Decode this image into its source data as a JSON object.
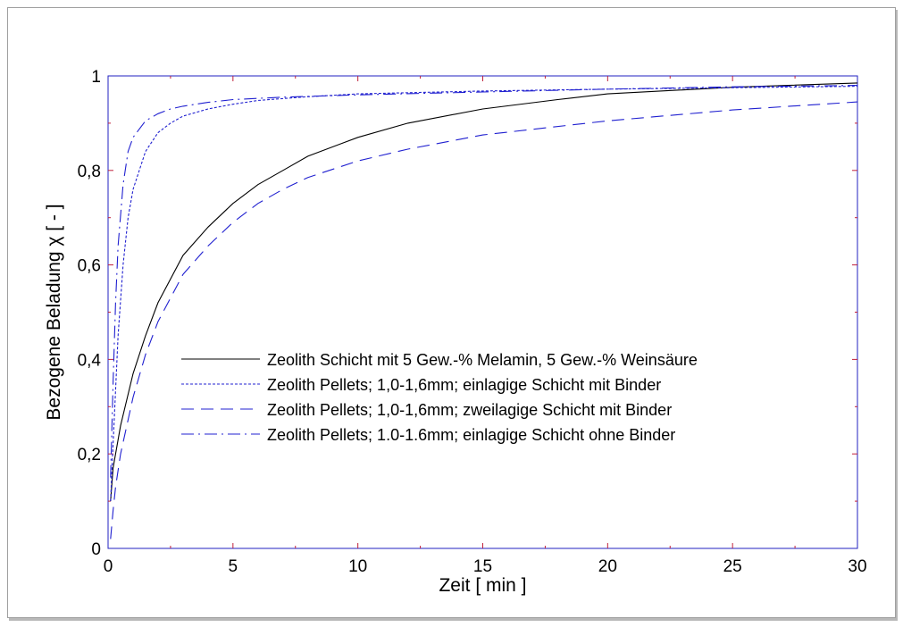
{
  "colors": {
    "axis": "#2020c0",
    "tick": "#c0203a",
    "curve_black": "#000000",
    "curve_blue": "#2020d0"
  },
  "chart_data": {
    "type": "line",
    "xlabel": "Zeit [ min ]",
    "ylabel": "Bezogene Beladung χ [ - ]",
    "xlim": [
      0,
      30
    ],
    "ylim": [
      0,
      1
    ],
    "x_ticks": [
      0,
      5,
      10,
      15,
      20,
      25,
      30
    ],
    "x_tick_labels": [
      "0",
      "5",
      "10",
      "15",
      "20",
      "25",
      "30"
    ],
    "y_ticks": [
      0,
      0.2,
      0.4,
      0.6,
      0.8,
      1
    ],
    "y_tick_labels": [
      "0",
      "0,2",
      "0,4",
      "0,6",
      "0,8",
      "1"
    ],
    "grid": false,
    "legend_position": "center-right",
    "series": [
      {
        "name": "Zeolith Schicht mit 5 Gew.-% Melamin, 5 Gew.-% Weinsäure",
        "style": "solid",
        "color": "#000000",
        "x": [
          0.1,
          0.2,
          0.5,
          1,
          1.5,
          2,
          3,
          4,
          5,
          6,
          7,
          8,
          10,
          12,
          15,
          18,
          20,
          25,
          30
        ],
        "y": [
          0.1,
          0.17,
          0.26,
          0.37,
          0.45,
          0.52,
          0.62,
          0.68,
          0.73,
          0.77,
          0.8,
          0.83,
          0.87,
          0.9,
          0.93,
          0.95,
          0.962,
          0.976,
          0.985
        ]
      },
      {
        "name": "Zeolith Pellets; 1,0-1,6mm; einlagige Schicht mit Binder",
        "style": "dotted",
        "color": "#2020d0",
        "x": [
          0.1,
          0.2,
          0.4,
          0.6,
          0.8,
          1,
          1.5,
          2,
          2.5,
          3,
          4,
          5,
          6,
          8,
          10,
          15,
          20,
          25,
          30
        ],
        "y": [
          0.1,
          0.22,
          0.45,
          0.6,
          0.7,
          0.76,
          0.84,
          0.88,
          0.9,
          0.915,
          0.93,
          0.94,
          0.948,
          0.956,
          0.962,
          0.968,
          0.972,
          0.975,
          0.978
        ]
      },
      {
        "name": "Zeolith Pellets; 1,0-1,6mm; zweilagige Schicht mit Binder",
        "style": "dashed",
        "color": "#2020d0",
        "x": [
          0.1,
          0.2,
          0.3,
          0.5,
          1,
          1.5,
          2,
          3,
          4,
          5,
          6,
          7,
          8,
          10,
          12,
          15,
          20,
          25,
          30
        ],
        "y": [
          0.02,
          0.08,
          0.13,
          0.2,
          0.32,
          0.41,
          0.48,
          0.58,
          0.64,
          0.69,
          0.73,
          0.76,
          0.785,
          0.82,
          0.845,
          0.875,
          0.905,
          0.928,
          0.945
        ]
      },
      {
        "name": "Zeolith Pellets; 1.0-1.6mm; einlagige Schicht ohne Binder",
        "style": "dashdot",
        "color": "#2020d0",
        "x": [
          0.1,
          0.2,
          0.3,
          0.4,
          0.6,
          0.8,
          1,
          1.5,
          2,
          2.5,
          3,
          4,
          5,
          7,
          10,
          15,
          20,
          25,
          30
        ],
        "y": [
          0.15,
          0.35,
          0.52,
          0.64,
          0.77,
          0.84,
          0.87,
          0.905,
          0.92,
          0.93,
          0.936,
          0.944,
          0.95,
          0.955,
          0.96,
          0.966,
          0.972,
          0.977,
          0.98
        ]
      }
    ]
  }
}
